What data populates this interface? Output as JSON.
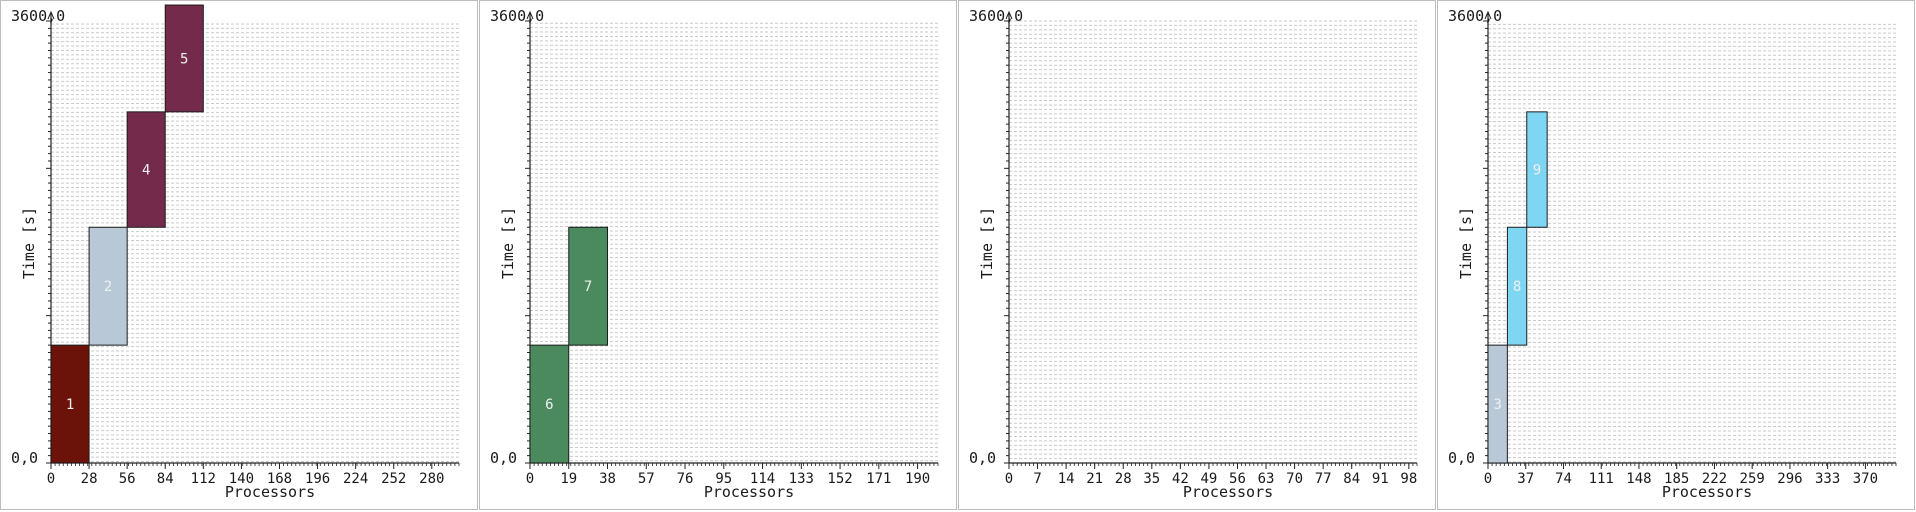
{
  "chart_data": [
    {
      "type": "bar",
      "corner_top": "3600,0",
      "corner_bottom": "0,0",
      "xlabel": "Processors",
      "ylabel": "Time [s]",
      "xlim": [
        0,
        300
      ],
      "ylim": [
        0,
        3600
      ],
      "x_ticks": [
        "0",
        "28",
        "56",
        "84",
        "112",
        "140",
        "168",
        "196",
        "224",
        "252",
        "280"
      ],
      "x_tick_values": [
        0,
        28,
        56,
        84,
        112,
        140,
        168,
        196,
        224,
        252,
        280
      ],
      "processor_lines": 300,
      "jobs": [
        {
          "label": "1",
          "proc_start": 0,
          "proc_end": 28,
          "t_start": 0,
          "t_end": 960,
          "color": "#6b1209"
        },
        {
          "label": "2",
          "proc_start": 28,
          "proc_end": 56,
          "t_start": 960,
          "t_end": 1920,
          "color": "#b8c8d6"
        },
        {
          "label": "4",
          "proc_start": 56,
          "proc_end": 84,
          "t_start": 1920,
          "t_end": 2860,
          "color": "#742b4b"
        },
        {
          "label": "5",
          "proc_start": 84,
          "proc_end": 112,
          "t_start": 2860,
          "t_end": 3730,
          "color": "#742b4b"
        }
      ]
    },
    {
      "type": "bar",
      "corner_top": "3600,0",
      "corner_bottom": "0,0",
      "xlabel": "Processors",
      "ylabel": "Time [s]",
      "xlim": [
        0,
        200
      ],
      "ylim": [
        0,
        3600
      ],
      "x_ticks": [
        "0",
        "19",
        "38",
        "57",
        "76",
        "95",
        "114",
        "133",
        "152",
        "171",
        "190"
      ],
      "x_tick_values": [
        0,
        19,
        38,
        57,
        76,
        95,
        114,
        133,
        152,
        171,
        190
      ],
      "processor_lines": 200,
      "jobs": [
        {
          "label": "6",
          "proc_start": 0,
          "proc_end": 19,
          "t_start": 0,
          "t_end": 960,
          "color": "#4b8a5f"
        },
        {
          "label": "7",
          "proc_start": 19,
          "proc_end": 38,
          "t_start": 960,
          "t_end": 1920,
          "color": "#4b8a5f"
        }
      ]
    },
    {
      "type": "bar",
      "corner_top": "3600,0",
      "corner_bottom": "0,0",
      "xlabel": "Processors",
      "ylabel": "Time [s]",
      "xlim": [
        0,
        100
      ],
      "ylim": [
        0,
        3600
      ],
      "x_ticks": [
        "0",
        "7",
        "14",
        "21",
        "28",
        "35",
        "42",
        "49",
        "56",
        "63",
        "70",
        "77",
        "84",
        "91",
        "98"
      ],
      "x_tick_values": [
        0,
        7,
        14,
        21,
        28,
        35,
        42,
        49,
        56,
        63,
        70,
        77,
        84,
        91,
        98
      ],
      "processor_lines": 100,
      "jobs": []
    },
    {
      "type": "bar",
      "corner_top": "3600,0",
      "corner_bottom": "0,0",
      "xlabel": "Processors",
      "ylabel": "Time [s]",
      "xlim": [
        0,
        400
      ],
      "ylim": [
        0,
        3600
      ],
      "x_ticks": [
        "0",
        "37",
        "74",
        "111",
        "148",
        "185",
        "222",
        "259",
        "296",
        "333",
        "370"
      ],
      "x_tick_values": [
        0,
        37,
        74,
        111,
        148,
        185,
        222,
        259,
        296,
        333,
        370
      ],
      "processor_lines": 400,
      "jobs": [
        {
          "label": "3",
          "proc_start": 0,
          "proc_end": 19,
          "t_start": 0,
          "t_end": 960,
          "color": "#b8c8d6"
        },
        {
          "label": "8",
          "proc_start": 19,
          "proc_end": 38,
          "t_start": 960,
          "t_end": 1920,
          "color": "#7fd6f2"
        },
        {
          "label": "9",
          "proc_start": 38,
          "proc_end": 58,
          "t_start": 1920,
          "t_end": 2860,
          "color": "#7fd6f2"
        }
      ]
    }
  ]
}
